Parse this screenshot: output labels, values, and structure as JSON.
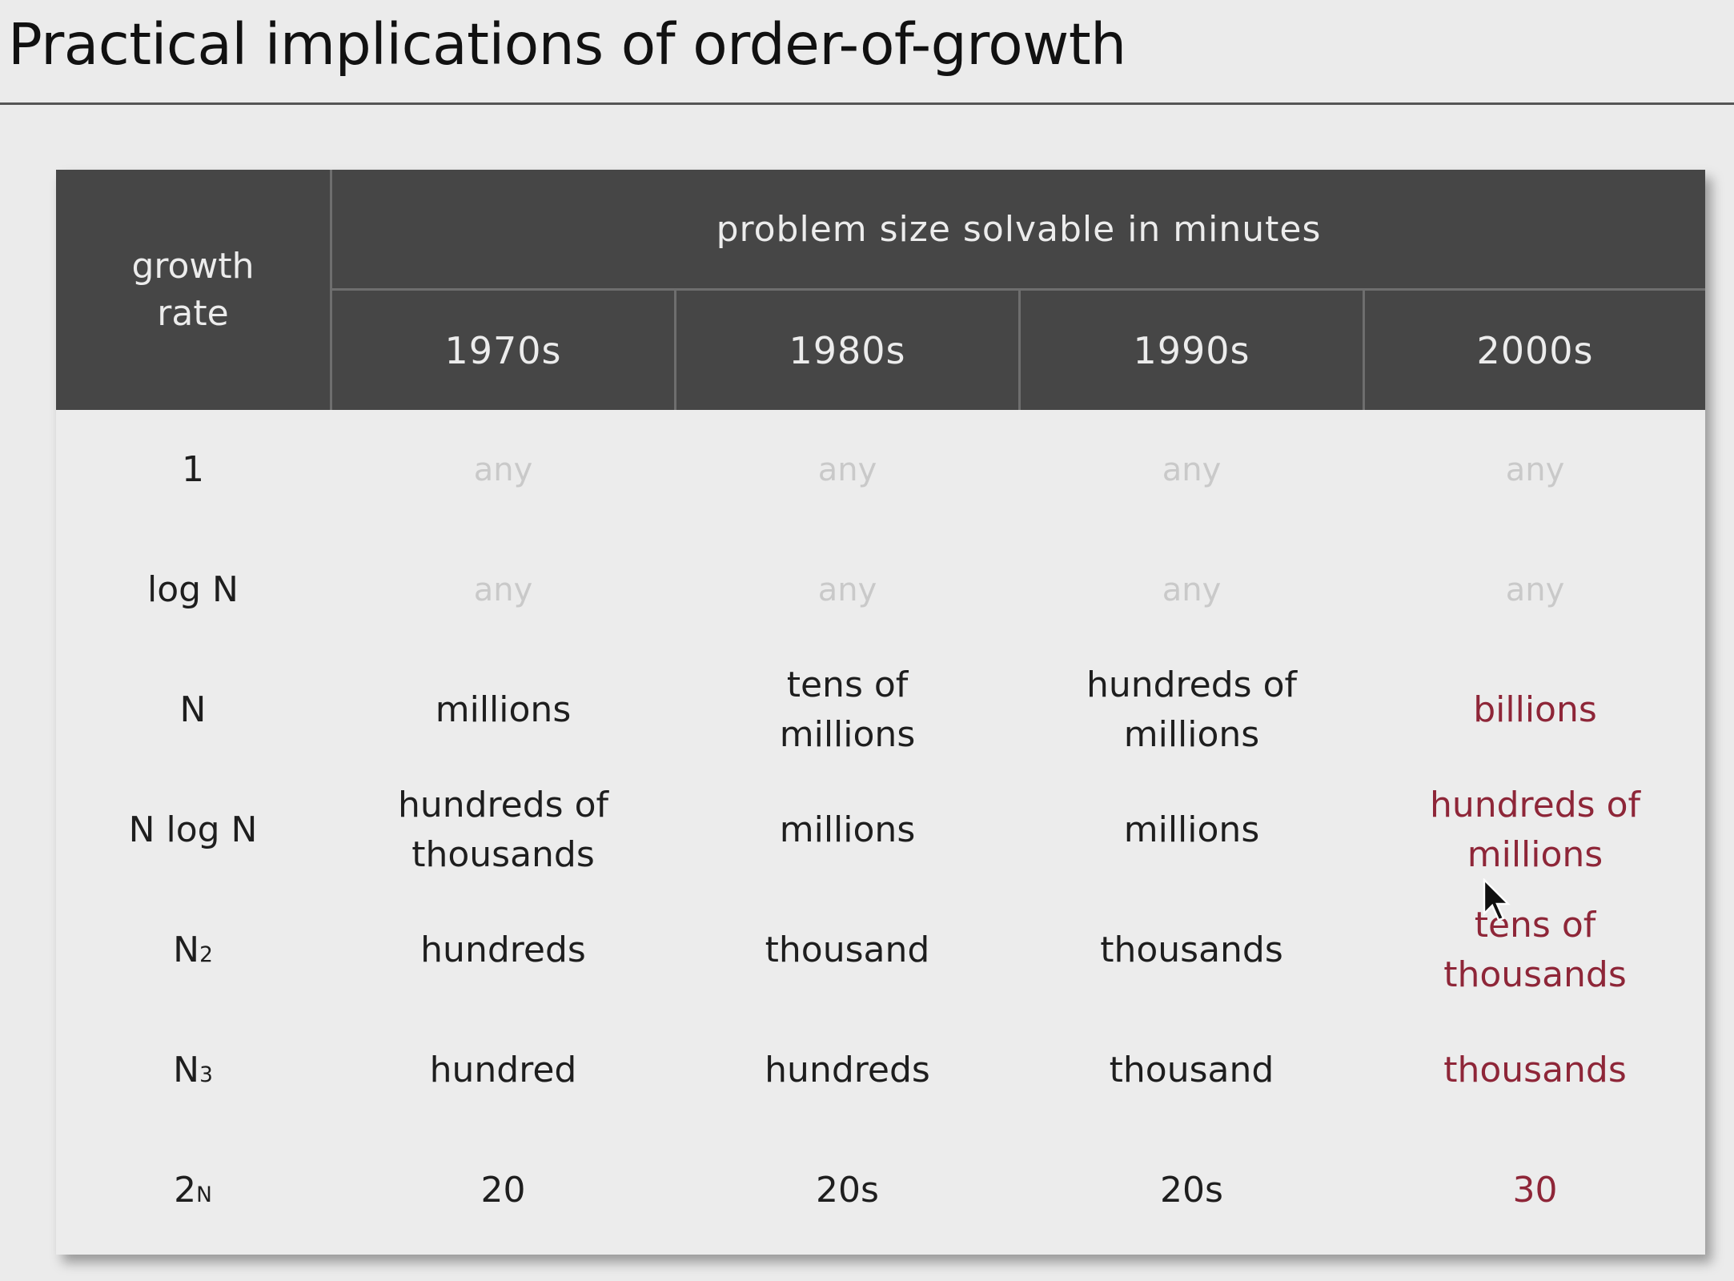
{
  "slide": {
    "title": "Practical implications of order-of-growth"
  },
  "table": {
    "growth_header": "growth\nrate",
    "span_header": "problem size solvable in minutes",
    "decades": [
      "1970s",
      "1980s",
      "1990s",
      "2000s"
    ],
    "rows": [
      {
        "rate_base": "1",
        "rate_sup": "",
        "cells": [
          "any",
          "any",
          "any",
          "any"
        ]
      },
      {
        "rate_base": "log N",
        "rate_sup": "",
        "cells": [
          "any",
          "any",
          "any",
          "any"
        ]
      },
      {
        "rate_base": "N",
        "rate_sup": "",
        "cells": [
          "millions",
          "tens of\nmillions",
          "hundreds of\nmillions",
          "billions"
        ]
      },
      {
        "rate_base": "N log N",
        "rate_sup": "",
        "cells": [
          "hundreds of\nthousands",
          "millions",
          "millions",
          "hundreds of\nmillions"
        ]
      },
      {
        "rate_base": "N",
        "rate_sup": "2",
        "cells": [
          "hundreds",
          "thousand",
          "thousands",
          "tens of\nthousands"
        ]
      },
      {
        "rate_base": "N",
        "rate_sup": "3",
        "cells": [
          "hundred",
          "hundreds",
          "thousand",
          "thousands"
        ]
      },
      {
        "rate_base": "2",
        "rate_sup": "N",
        "cells": [
          "20",
          "20s",
          "20s",
          "30"
        ]
      }
    ]
  },
  "colors": {
    "header_bg": "#464646",
    "highlight_text": "#8e2638",
    "faint_text": "#c9c9c9"
  },
  "icons": {
    "cursor": "mouse-pointer-icon"
  }
}
